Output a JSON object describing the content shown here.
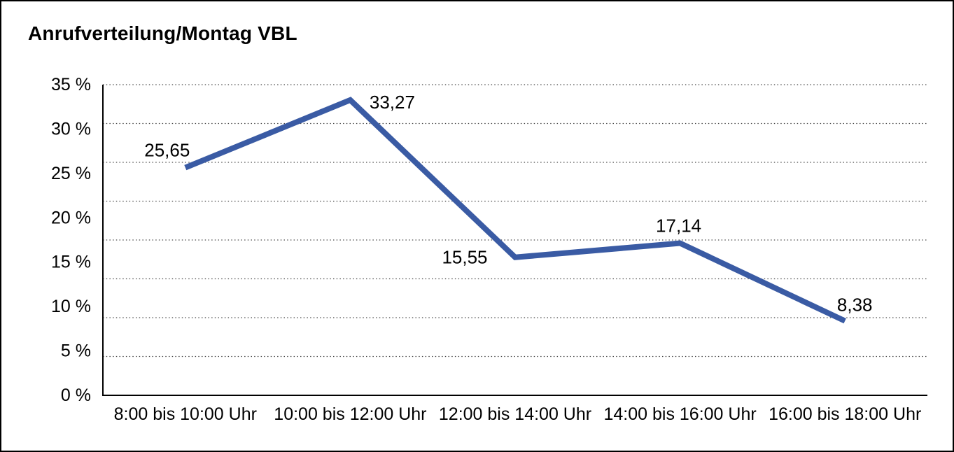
{
  "window": {
    "title": "Anrufverteilung/Montag VBL"
  },
  "chart_data": {
    "type": "line",
    "title": "Anrufverteilung/Montag VBL",
    "categories": [
      "8:00 bis 10:00 Uhr",
      "10:00 bis 12:00 Uhr",
      "12:00 bis 14:00 Uhr",
      "14:00 bis 16:00 Uhr",
      "16:00 bis 18:00 Uhr"
    ],
    "values": [
      25.65,
      33.27,
      15.55,
      17.14,
      8.38
    ],
    "data_labels": [
      "25,65",
      "33,27",
      "15,55",
      "17,14",
      "8,38"
    ],
    "xlabel": "",
    "ylabel": "",
    "ylim": [
      0,
      35
    ],
    "ytick_step": 5,
    "ytick_labels": [
      "0 %",
      "5 %",
      "10 %",
      "15 %",
      "20 %",
      "25 %",
      "30 %",
      "35 %"
    ],
    "gridline_count": 9,
    "grid_style": "dotted-horizontal",
    "legend_position": "none",
    "colors": {
      "line": "#3A5BA4",
      "axis": "#000000",
      "gridline": "#4a4a4a",
      "text": "#000000",
      "background": "#ffffff",
      "frame_border": "#000000"
    }
  }
}
